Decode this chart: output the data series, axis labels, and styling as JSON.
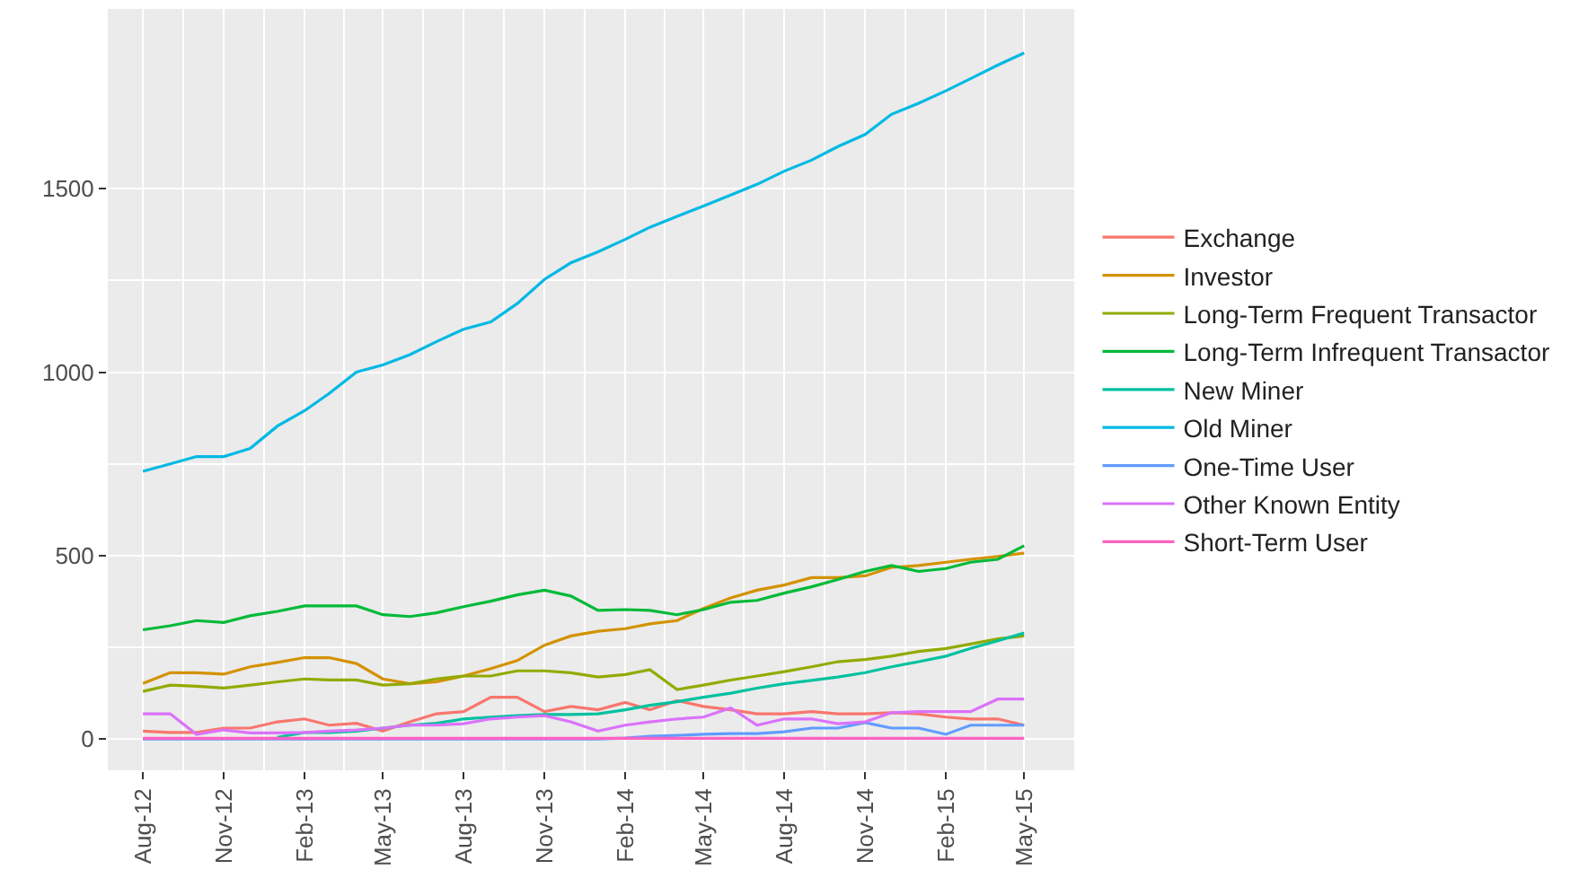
{
  "chart_data": {
    "type": "line",
    "x": [
      "2012-08",
      "2012-09",
      "2012-10",
      "2012-11",
      "2012-12",
      "2013-01",
      "2013-02",
      "2013-03",
      "2013-04",
      "2013-05",
      "2013-06",
      "2013-07",
      "2013-08",
      "2013-09",
      "2013-10",
      "2013-11",
      "2013-12",
      "2014-01",
      "2014-02",
      "2014-03",
      "2014-04",
      "2014-05",
      "2014-06",
      "2014-07",
      "2014-08",
      "2014-09",
      "2014-10",
      "2014-11",
      "2014-12",
      "2015-01",
      "2015-02",
      "2015-03",
      "2015-04",
      "2015-05"
    ],
    "series": [
      {
        "name": "Exchange",
        "color": "#f8766d",
        "values": [
          22,
          18,
          18,
          30,
          30,
          47,
          55,
          38,
          43,
          22,
          47,
          69,
          75,
          114,
          114,
          75,
          89,
          80,
          100,
          80,
          105,
          89,
          80,
          69,
          69,
          75,
          69,
          69,
          72,
          69,
          60,
          55,
          55,
          38
        ]
      },
      {
        "name": "Investor",
        "color": "#d39200",
        "values": [
          152,
          181,
          181,
          177,
          197,
          209,
          222,
          222,
          206,
          164,
          151,
          156,
          172,
          192,
          214,
          256,
          281,
          294,
          301,
          314,
          323,
          356,
          385,
          406,
          420,
          440,
          440,
          445,
          468,
          473,
          482,
          490,
          498,
          507
        ]
      },
      {
        "name": "Long-Term Frequent Transactor",
        "color": "#93aa00",
        "values": [
          130,
          147,
          144,
          139,
          147,
          156,
          164,
          161,
          161,
          147,
          151,
          164,
          172,
          172,
          186,
          186,
          181,
          169,
          176,
          189,
          135,
          147,
          161,
          172,
          184,
          197,
          211,
          217,
          226,
          239,
          247,
          259,
          273,
          281
        ]
      },
      {
        "name": "Long-Term Infrequent Transactor",
        "color": "#00ba38",
        "values": [
          298,
          309,
          323,
          318,
          336,
          348,
          363,
          363,
          363,
          339,
          334,
          344,
          361,
          376,
          393,
          406,
          390,
          351,
          353,
          351,
          339,
          353,
          373,
          378,
          398,
          415,
          435,
          457,
          473,
          457,
          465,
          482,
          490,
          527
        ]
      },
      {
        "name": "New Miner",
        "color": "#00c19f",
        "values": [
          null,
          null,
          null,
          null,
          null,
          5,
          18,
          18,
          22,
          30,
          38,
          43,
          55,
          60,
          64,
          67,
          67,
          69,
          80,
          92,
          102,
          114,
          125,
          139,
          151,
          160,
          169,
          181,
          197,
          211,
          226,
          247,
          268,
          289
        ]
      },
      {
        "name": "Old Miner",
        "color": "#00b9e3",
        "values": [
          730,
          750,
          770,
          770,
          792,
          853,
          895,
          942,
          1000,
          1020,
          1048,
          1083,
          1117,
          1137,
          1187,
          1253,
          1298,
          1328,
          1362,
          1395,
          1425,
          1453,
          1483,
          1512,
          1548,
          1578,
          1615,
          1648,
          1703,
          1733,
          1767,
          1800,
          1837,
          1870
        ]
      },
      {
        "name": "One-Time User",
        "color": "#619cff",
        "values": [
          0,
          0,
          0,
          0,
          0,
          0,
          0,
          0,
          0,
          0,
          0,
          0,
          0,
          0,
          0,
          0,
          0,
          0,
          3,
          8,
          10,
          13,
          15,
          15,
          20,
          30,
          30,
          45,
          30,
          30,
          13,
          38,
          38,
          38
        ]
      },
      {
        "name": "Other Known Entity",
        "color": "#db72fb",
        "values": [
          69,
          69,
          13,
          25,
          17,
          17,
          18,
          22,
          25,
          30,
          38,
          38,
          42,
          55,
          60,
          64,
          47,
          22,
          38,
          47,
          55,
          60,
          85,
          38,
          55,
          55,
          42,
          47,
          72,
          75,
          75,
          75,
          109,
          109
        ]
      },
      {
        "name": "Short-Term User",
        "color": "#ff61c3",
        "values": [
          2,
          2,
          2,
          2,
          2,
          2,
          2,
          2,
          2,
          2,
          2,
          2,
          2,
          2,
          2,
          2,
          2,
          2,
          2,
          2,
          2,
          2,
          2,
          2,
          2,
          2,
          2,
          2,
          2,
          2,
          2,
          2,
          2,
          2
        ]
      }
    ],
    "xlim": [
      "2012-06-22",
      "2015-06-27"
    ],
    "xticks": [
      {
        "value": "2012-08",
        "label": "Aug-12"
      },
      {
        "value": "2012-11",
        "label": "Nov-12"
      },
      {
        "value": "2013-02",
        "label": "Feb-13"
      },
      {
        "value": "2013-05",
        "label": "May-13"
      },
      {
        "value": "2013-08",
        "label": "Aug-13"
      },
      {
        "value": "2013-11",
        "label": "Nov-13"
      },
      {
        "value": "2014-02",
        "label": "Feb-14"
      },
      {
        "value": "2014-05",
        "label": "May-14"
      },
      {
        "value": "2014-08",
        "label": "Aug-14"
      },
      {
        "value": "2014-11",
        "label": "Nov-14"
      },
      {
        "value": "2015-02",
        "label": "Feb-15"
      },
      {
        "value": "2015-05",
        "label": "May-15"
      }
    ],
    "ylim": [
      -85,
      1990
    ],
    "yticks": [
      0,
      500,
      1000,
      1500
    ],
    "grid": true,
    "legend": "right",
    "marker": "none",
    "line_style": "solid"
  }
}
